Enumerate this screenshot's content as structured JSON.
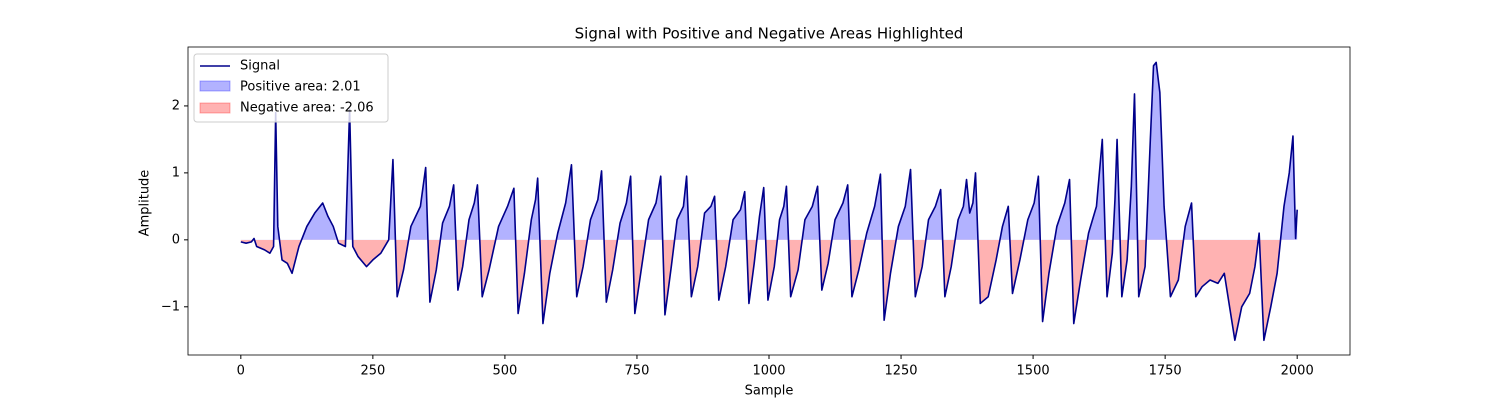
{
  "chart_data": {
    "type": "line",
    "title": "Signal with Positive and Negative Areas Highlighted",
    "x_label": "Sample",
    "y_label": "Amplitude",
    "x": [
      0,
      10,
      20,
      25,
      30,
      45,
      55,
      62,
      66,
      70,
      78,
      88,
      97,
      110,
      125,
      140,
      155,
      165,
      175,
      185,
      198,
      206,
      212,
      222,
      238,
      250,
      265,
      280,
      288,
      296,
      308,
      322,
      340,
      350,
      358,
      370,
      382,
      395,
      403,
      411,
      420,
      432,
      442,
      448,
      457,
      470,
      488,
      505,
      517,
      525,
      537,
      550,
      558,
      562,
      572,
      585,
      600,
      615,
      626,
      636,
      648,
      662,
      676,
      683,
      692,
      704,
      718,
      730,
      738,
      746,
      758,
      772,
      786,
      795,
      803,
      815,
      826,
      838,
      844,
      853,
      865,
      878,
      890,
      897,
      905,
      918,
      932,
      946,
      954,
      962,
      972,
      982,
      990,
      998,
      1010,
      1020,
      1028,
      1033,
      1041,
      1055,
      1068,
      1082,
      1092,
      1100,
      1112,
      1125,
      1140,
      1149,
      1157,
      1170,
      1185,
      1200,
      1211,
      1218,
      1230,
      1245,
      1258,
      1268,
      1277,
      1290,
      1302,
      1315,
      1325,
      1333,
      1345,
      1358,
      1368,
      1374,
      1380,
      1386,
      1391,
      1400,
      1415,
      1430,
      1442,
      1453,
      1461,
      1475,
      1490,
      1502,
      1510,
      1518,
      1530,
      1545,
      1560,
      1569,
      1577,
      1590,
      1605,
      1620,
      1631,
      1640,
      1650,
      1655,
      1659,
      1668,
      1678,
      1686,
      1692,
      1700,
      1712,
      1722,
      1728,
      1733,
      1740,
      1748,
      1760,
      1775,
      1788,
      1800,
      1808,
      1820,
      1835,
      1850,
      1862,
      1872,
      1882,
      1895,
      1910,
      1920,
      1928,
      1937,
      1950,
      1962,
      1975,
      1985,
      1992,
      1997,
      2000
    ],
    "series": [
      {
        "name": "Signal",
        "color": "#00008b",
        "values": [
          -0.03,
          -0.05,
          -0.03,
          0.02,
          -0.1,
          -0.15,
          -0.2,
          -0.1,
          1.9,
          0.2,
          -0.3,
          -0.35,
          -0.5,
          -0.1,
          0.2,
          0.4,
          0.55,
          0.35,
          0.2,
          -0.05,
          -0.1,
          1.95,
          -0.1,
          -0.25,
          -0.4,
          -0.3,
          -0.2,
          0.0,
          1.2,
          -0.85,
          -0.45,
          0.2,
          0.5,
          1.08,
          -0.93,
          -0.45,
          0.25,
          0.5,
          0.82,
          -0.75,
          -0.4,
          0.3,
          0.55,
          0.82,
          -0.85,
          -0.45,
          0.2,
          0.5,
          0.77,
          -1.1,
          -0.5,
          0.3,
          0.6,
          0.92,
          -1.25,
          -0.5,
          0.1,
          0.55,
          1.12,
          -0.85,
          -0.4,
          0.3,
          0.6,
          1.03,
          -0.93,
          -0.45,
          0.25,
          0.55,
          0.95,
          -1.1,
          -0.45,
          0.3,
          0.55,
          0.95,
          -1.12,
          -0.4,
          0.3,
          0.5,
          0.95,
          -0.85,
          -0.4,
          0.4,
          0.5,
          0.65,
          -0.9,
          -0.4,
          0.3,
          0.45,
          0.72,
          -0.95,
          -0.35,
          0.35,
          0.78,
          -0.9,
          -0.4,
          0.3,
          0.5,
          0.8,
          -0.85,
          -0.45,
          0.3,
          0.5,
          0.8,
          -0.75,
          -0.35,
          0.3,
          0.55,
          0.82,
          -0.85,
          -0.45,
          0.1,
          0.5,
          0.98,
          -1.2,
          -0.5,
          0.2,
          0.5,
          1.05,
          -0.85,
          -0.4,
          0.3,
          0.5,
          0.75,
          -0.85,
          -0.4,
          0.3,
          0.5,
          0.9,
          0.4,
          0.55,
          1.0,
          -0.95,
          -0.85,
          -0.3,
          0.2,
          0.5,
          -0.8,
          -0.3,
          0.3,
          0.55,
          0.95,
          -1.22,
          -0.5,
          0.2,
          0.55,
          0.9,
          -1.25,
          -0.6,
          0.1,
          0.5,
          1.5,
          -0.85,
          -0.2,
          0.6,
          1.5,
          -0.85,
          -0.3,
          0.8,
          2.18,
          -0.85,
          -0.4,
          1.5,
          2.6,
          2.65,
          2.2,
          0.5,
          -0.85,
          -0.6,
          0.2,
          0.55,
          -0.85,
          -0.7,
          -0.6,
          -0.65,
          -0.5,
          -1.0,
          -1.5,
          -1.0,
          -0.8,
          -0.4,
          0.1,
          -1.5,
          -1.0,
          -0.5,
          0.5,
          1.0,
          1.55,
          0.02,
          0.45
        ]
      }
    ],
    "positive_fill": {
      "name": "Positive area: 2.01",
      "color": "#0000ff"
    },
    "negative_fill": {
      "name": "Negative area: -2.06",
      "color": "#ff0000"
    },
    "xlim": [
      -100,
      2100
    ],
    "xticks": [
      0,
      250,
      500,
      750,
      1000,
      1250,
      1500,
      1750,
      2000
    ],
    "ylim": [
      -1.72,
      2.88
    ],
    "yticks": [
      {
        "value": -1,
        "label": "−1"
      },
      0,
      1,
      2
    ]
  }
}
